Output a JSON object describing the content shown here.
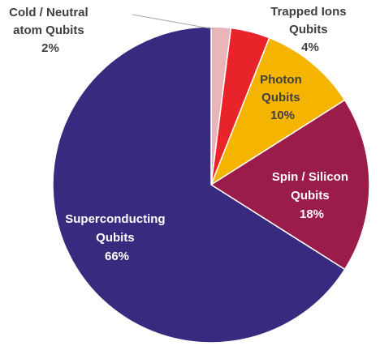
{
  "chart_data": {
    "type": "pie",
    "title": "",
    "slices": [
      {
        "label": "Cold / Neutral atom Qubits",
        "value": 2,
        "pct_text": "2%",
        "color": "#e8b5b8",
        "label_color": "#404040"
      },
      {
        "label": "Trapped Ions Qubits",
        "value": 4,
        "pct_text": "4%",
        "color": "#e8232a",
        "label_color": "#404040"
      },
      {
        "label": "Photon Qubits",
        "value": 10,
        "pct_text": "10%",
        "color": "#f4b400",
        "label_color": "#404040"
      },
      {
        "label": "Spin / Silicon Qubits",
        "value": 18,
        "pct_text": "18%",
        "color": "#9b1b4a",
        "label_color": "#ffffff"
      },
      {
        "label": "Superconducting Qubits",
        "value": 66,
        "pct_text": "66%",
        "color": "#382a7e",
        "label_color": "#ffffff"
      }
    ]
  },
  "labels": {
    "cold": [
      "Cold / Neutral",
      "atom Qubits",
      "2%"
    ],
    "ions": [
      "Trapped Ions",
      "Qubits",
      "4%"
    ],
    "photon": [
      "Photon",
      "Qubits",
      "10%"
    ],
    "spin": [
      "Spin / Silicon",
      "Qubits",
      "18%"
    ],
    "super": [
      "Superconducting",
      "Qubits",
      "66%"
    ]
  }
}
